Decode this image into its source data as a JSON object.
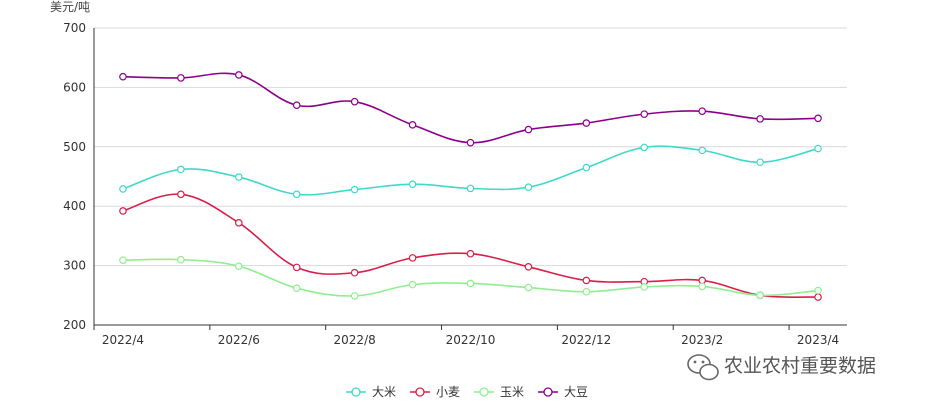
{
  "chart_data": {
    "type": "line",
    "smooth": true,
    "y_unit_label": "美元/吨",
    "x": [
      "2022/4",
      "2022/5",
      "2022/6",
      "2022/7",
      "2022/8",
      "2022/9",
      "2022/10",
      "2022/11",
      "2022/12",
      "2023/1",
      "2023/2",
      "2023/3",
      "2023/4"
    ],
    "x_tick_labels": [
      "2022/4",
      "2022/6",
      "2022/8",
      "2022/10",
      "2022/12",
      "2023/2",
      "2023/4"
    ],
    "ylim": [
      200,
      700
    ],
    "y_ticks": [
      200,
      300,
      400,
      500,
      600,
      700
    ],
    "grid": true,
    "legend_position": "bottom",
    "series": [
      {
        "name": "大米",
        "color": "#40d9c9",
        "values": [
          429,
          462,
          449,
          420,
          428,
          437,
          430,
          432,
          465,
          499,
          494,
          474,
          497
        ]
      },
      {
        "name": "小麦",
        "color": "#d91e4a",
        "values": [
          392,
          420,
          372,
          297,
          288,
          313,
          320,
          298,
          275,
          273,
          275,
          250,
          247
        ]
      },
      {
        "name": "玉米",
        "color": "#90ee90",
        "values": [
          309,
          310,
          299,
          262,
          249,
          268,
          270,
          263,
          256,
          264,
          265,
          250,
          258
        ]
      },
      {
        "name": "大豆",
        "color": "#8b008b",
        "values": [
          618,
          616,
          621,
          570,
          576,
          537,
          507,
          529,
          540,
          555,
          560,
          547,
          548
        ]
      }
    ]
  },
  "watermark": {
    "text": "农业农村重要数据",
    "icon": "wechat-icon"
  }
}
